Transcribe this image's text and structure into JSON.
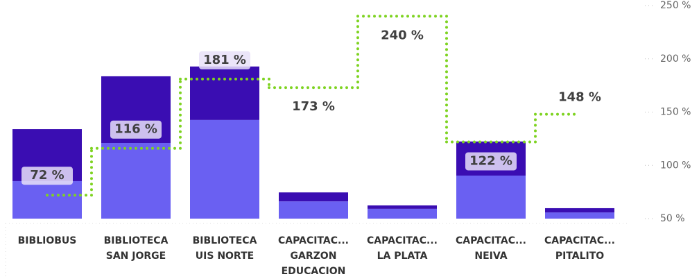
{
  "chart_data": {
    "type": "bar",
    "categories": [
      "BIBLIOBUS",
      "BIBLIOTECA\nSAN JORGE",
      "BIBLIOTECA\nUIS NORTE",
      "CAPACITAC...\nGARZON\nEDUCACION",
      "CAPACITAC...\nLA PLATA",
      "CAPACITAC...\nNEIVA",
      "CAPACITAC...\nPITALITO"
    ],
    "series": [
      {
        "color": "#6a60f2",
        "values": [
          17.6,
          35.5,
          46.3,
          8.1,
          4.6,
          20.2,
          2.9
        ]
      },
      {
        "color": "#3a0db2",
        "values": [
          24.4,
          31.3,
          25.1,
          4.2,
          1.6,
          16.0,
          2.0
        ]
      },
      {
        "type": "line",
        "axis": "y2",
        "color": "#7ed321",
        "values": [
          72,
          116,
          181,
          173,
          240,
          122,
          148
        ],
        "value_labels": [
          "72 %",
          "116 %",
          "181 %",
          "173 %",
          "240 %",
          "122 %",
          "148 %"
        ]
      }
    ],
    "ylim": [
      0,
      100
    ],
    "y2lim": [
      50,
      250
    ],
    "y2ticks": [
      {
        "value": 50,
        "label": "50 %"
      },
      {
        "value": 100,
        "label": "100 %"
      },
      {
        "value": 150,
        "label": "150 %"
      },
      {
        "value": 200,
        "label": "200 %"
      },
      {
        "value": 250,
        "label": "250 %"
      }
    ]
  }
}
